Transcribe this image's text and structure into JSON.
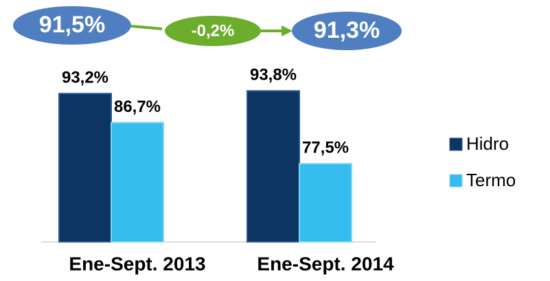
{
  "chart_data": {
    "type": "bar",
    "categories": [
      "Ene-Sept. 2013",
      "Ene-Sept. 2014"
    ],
    "series": [
      {
        "name": "Hidro",
        "color": "#0d3563",
        "values": [
          93.2,
          93.8
        ],
        "value_labels": [
          "93,2%",
          "93,8%"
        ]
      },
      {
        "name": "Termo",
        "color": "#35bdf0",
        "values": [
          86.7,
          77.5
        ],
        "value_labels": [
          "86,7%",
          "77,5%"
        ]
      }
    ],
    "ylim": [
      60,
      100
    ],
    "legend": "right",
    "annotations": [
      "91,5%",
      "-0,2%",
      "91,3%"
    ]
  }
}
